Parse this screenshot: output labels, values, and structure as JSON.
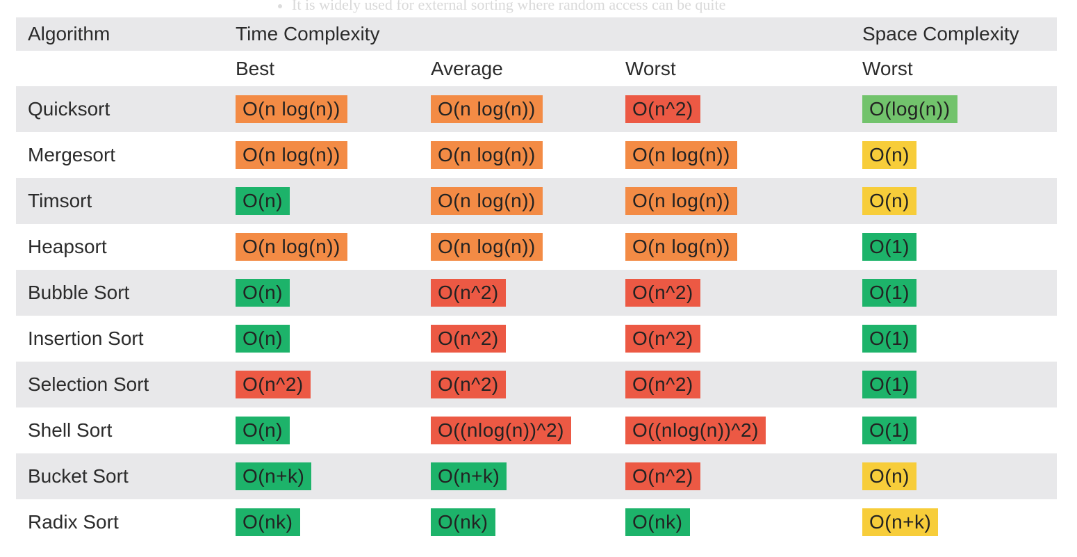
{
  "top_fragment": "It is widely used for external sorting where random access can be quite",
  "header": {
    "algorithm": "Algorithm",
    "time_complexity": "Time Complexity",
    "space_complexity": "Space Complexity",
    "best": "Best",
    "average": "Average",
    "worst": "Worst",
    "space_worst": "Worst"
  },
  "colors": {
    "green": "#1db36a",
    "light_green": "#72c36c",
    "yellow": "#f7cd3a",
    "orange": "#f38b45",
    "red": "#ec5944",
    "row_shade": "#e8e8ea"
  },
  "rows": [
    {
      "name": "Quicksort",
      "cells": [
        {
          "text": "O(n log(n))",
          "color": "orange"
        },
        {
          "text": "O(n log(n))",
          "color": "orange"
        },
        {
          "text": "O(n^2)",
          "color": "red"
        },
        {
          "text": "O(log(n))",
          "color": "lightgreen"
        }
      ]
    },
    {
      "name": "Mergesort",
      "cells": [
        {
          "text": "O(n log(n))",
          "color": "orange"
        },
        {
          "text": "O(n log(n))",
          "color": "orange"
        },
        {
          "text": "O(n log(n))",
          "color": "orange"
        },
        {
          "text": "O(n)",
          "color": "yellow"
        }
      ]
    },
    {
      "name": "Timsort",
      "cells": [
        {
          "text": "O(n)",
          "color": "green"
        },
        {
          "text": "O(n log(n))",
          "color": "orange"
        },
        {
          "text": "O(n log(n))",
          "color": "orange"
        },
        {
          "text": "O(n)",
          "color": "yellow"
        }
      ]
    },
    {
      "name": "Heapsort",
      "cells": [
        {
          "text": "O(n log(n))",
          "color": "orange"
        },
        {
          "text": "O(n log(n))",
          "color": "orange"
        },
        {
          "text": "O(n log(n))",
          "color": "orange"
        },
        {
          "text": "O(1)",
          "color": "green"
        }
      ]
    },
    {
      "name": "Bubble Sort",
      "cells": [
        {
          "text": "O(n)",
          "color": "green"
        },
        {
          "text": "O(n^2)",
          "color": "red"
        },
        {
          "text": "O(n^2)",
          "color": "red"
        },
        {
          "text": "O(1)",
          "color": "green"
        }
      ]
    },
    {
      "name": "Insertion Sort",
      "cells": [
        {
          "text": "O(n)",
          "color": "green"
        },
        {
          "text": "O(n^2)",
          "color": "red"
        },
        {
          "text": "O(n^2)",
          "color": "red"
        },
        {
          "text": "O(1)",
          "color": "green"
        }
      ]
    },
    {
      "name": "Selection Sort",
      "cells": [
        {
          "text": "O(n^2)",
          "color": "red"
        },
        {
          "text": "O(n^2)",
          "color": "red"
        },
        {
          "text": "O(n^2)",
          "color": "red"
        },
        {
          "text": "O(1)",
          "color": "green"
        }
      ]
    },
    {
      "name": "Shell Sort",
      "cells": [
        {
          "text": "O(n)",
          "color": "green"
        },
        {
          "text": "O((nlog(n))^2)",
          "color": "red"
        },
        {
          "text": "O((nlog(n))^2)",
          "color": "red"
        },
        {
          "text": "O(1)",
          "color": "green"
        }
      ]
    },
    {
      "name": "Bucket Sort",
      "cells": [
        {
          "text": "O(n+k)",
          "color": "green"
        },
        {
          "text": "O(n+k)",
          "color": "green"
        },
        {
          "text": "O(n^2)",
          "color": "red"
        },
        {
          "text": "O(n)",
          "color": "yellow"
        }
      ]
    },
    {
      "name": "Radix Sort",
      "cells": [
        {
          "text": "O(nk)",
          "color": "green"
        },
        {
          "text": "O(nk)",
          "color": "green"
        },
        {
          "text": "O(nk)",
          "color": "green"
        },
        {
          "text": "O(n+k)",
          "color": "yellow"
        }
      ]
    }
  ]
}
